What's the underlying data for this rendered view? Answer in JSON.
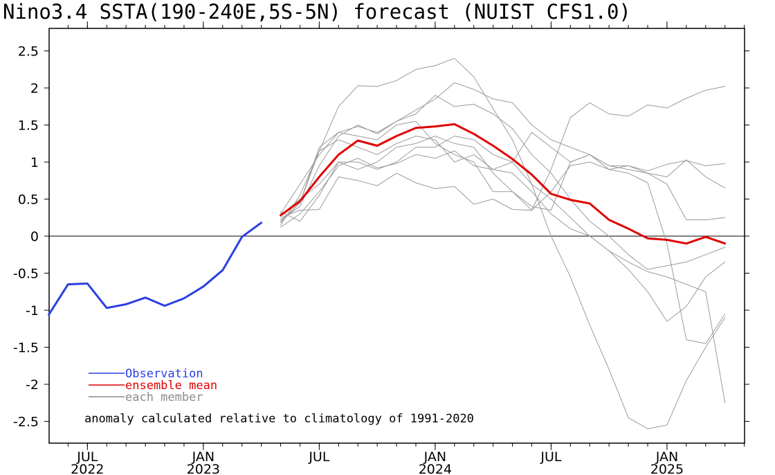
{
  "chart_data": {
    "type": "line",
    "title": "Nino3.4 SSTA(190-240E,5S-5N) forecast (NUIST CFS1.0)",
    "annotation": "anomaly calculated relative to climatology of 1991-2020",
    "ylim": [
      -2.8,
      2.8
    ],
    "y_ticks": [
      "2.5",
      "2",
      "1.5",
      "1",
      "0.5",
      "0",
      "-0.5",
      "-1",
      "-1.5",
      "-2",
      "-2.5"
    ],
    "y_tick_values": [
      2.5,
      2,
      1.5,
      1,
      0.5,
      0,
      -0.5,
      -1,
      -1.5,
      -2,
      -2.5
    ],
    "x_tick_labels": [
      {
        "month": "JUL",
        "year": "2022",
        "x": "2022-07"
      },
      {
        "month": "JAN",
        "year": "2023",
        "x": "2023-01"
      },
      {
        "month": "JUL",
        "year": "",
        "x": "2023-07"
      },
      {
        "month": "JAN",
        "year": "2024",
        "x": "2024-01"
      },
      {
        "month": "JUL",
        "year": "",
        "x": "2024-07"
      },
      {
        "month": "JAN",
        "year": "2025",
        "x": "2025-01"
      }
    ],
    "x_range": [
      "2022-05",
      "2025-05"
    ],
    "zero_line": true,
    "grid": false,
    "legend_position": "bottom-left",
    "legend": [
      {
        "label": "Observation",
        "color": "#2b3fe0"
      },
      {
        "label": "ensemble mean",
        "color": "#e00000"
      },
      {
        "label": "each member",
        "color": "#8c8c8c"
      }
    ],
    "colors": {
      "observation": "#2b3fe0",
      "ensemble": "#e00000",
      "member": "#9a9a9a"
    },
    "series": [
      {
        "name": "Observation",
        "color": "#2b3fe0",
        "x": [
          "2022-05",
          "2022-06",
          "2022-07",
          "2022-08",
          "2022-09",
          "2022-10",
          "2022-11",
          "2022-12",
          "2023-01",
          "2023-02",
          "2023-03",
          "2023-04"
        ],
        "values": [
          -1.06,
          -0.65,
          -0.64,
          -0.97,
          -0.92,
          -0.83,
          -0.94,
          -0.84,
          -0.68,
          -0.46,
          -0.01,
          0.18
        ]
      },
      {
        "name": "ensemble mean",
        "color": "#e00000",
        "x": [
          "2023-05",
          "2023-06",
          "2023-07",
          "2023-08",
          "2023-09",
          "2023-10",
          "2023-11",
          "2023-12",
          "2024-01",
          "2024-02",
          "2024-03",
          "2024-04",
          "2024-05",
          "2024-06",
          "2024-07",
          "2024-08",
          "2024-09",
          "2024-10",
          "2024-11",
          "2024-12",
          "2025-01",
          "2025-02",
          "2025-03",
          "2025-04"
        ],
        "values": [
          0.28,
          0.47,
          0.8,
          1.1,
          1.29,
          1.22,
          1.35,
          1.46,
          1.48,
          1.51,
          1.38,
          1.22,
          1.04,
          0.83,
          0.57,
          0.49,
          0.44,
          0.22,
          0.1,
          -0.03,
          -0.05,
          -0.1,
          -0.01,
          -0.1
        ]
      },
      {
        "name": "each member",
        "color": "#9a9a9a",
        "x_start": "2023-05",
        "values": [
          0.12,
          0.3,
          0.6,
          0.95,
          1.05,
          0.92,
          0.98,
          1.1,
          1.05,
          1.15,
          0.95,
          0.9,
          0.85,
          0.6,
          0.3,
          0.1,
          0.0,
          -0.2,
          -0.35,
          -0.48,
          -0.55,
          -0.65,
          -0.75,
          -2.25
        ]
      },
      {
        "name": "each member",
        "color": "#9a9a9a",
        "x_start": "2023-05",
        "values": [
          0.15,
          0.55,
          1.15,
          1.75,
          2.03,
          2.02,
          2.1,
          2.25,
          2.3,
          2.4,
          2.15,
          1.72,
          1.3,
          0.7,
          0.0,
          -0.55,
          -1.2,
          -1.8,
          -2.45,
          -2.6,
          -2.55,
          -1.95,
          -1.5,
          -1.1
        ]
      },
      {
        "name": "each member",
        "color": "#9a9a9a",
        "x_start": "2023-05",
        "values": [
          0.22,
          0.4,
          0.95,
          1.35,
          1.5,
          1.38,
          1.55,
          1.7,
          1.85,
          2.07,
          1.98,
          1.85,
          1.8,
          1.5,
          1.3,
          1.2,
          1.1,
          0.9,
          0.85,
          0.72,
          -0.1,
          -1.4,
          -1.45,
          -1.05
        ]
      },
      {
        "name": "each member",
        "color": "#9a9a9a",
        "x_start": "2023-05",
        "values": [
          0.33,
          0.2,
          0.55,
          1.0,
          1.0,
          0.9,
          1.0,
          1.2,
          1.2,
          1.35,
          1.3,
          1.1,
          1.0,
          0.7,
          0.5,
          0.25,
          0.0,
          -0.2,
          -0.45,
          -0.75,
          -1.15,
          -0.95,
          -0.55,
          -0.35
        ]
      },
      {
        "name": "each member",
        "color": "#9a9a9a",
        "x_start": "2023-05",
        "values": [
          0.2,
          0.45,
          1.2,
          1.4,
          1.48,
          1.4,
          1.55,
          1.65,
          1.9,
          1.75,
          1.78,
          1.65,
          1.45,
          1.1,
          0.85,
          0.5,
          0.2,
          0.0,
          -0.25,
          -0.45,
          -0.4,
          -0.35,
          -0.25,
          -0.15
        ]
      },
      {
        "name": "each member",
        "color": "#9a9a9a",
        "x_start": "2023-05",
        "values": [
          0.25,
          0.35,
          0.36,
          0.8,
          0.75,
          0.68,
          0.85,
          0.72,
          0.64,
          0.67,
          0.43,
          0.5,
          0.36,
          0.35,
          0.9,
          1.6,
          1.8,
          1.65,
          1.62,
          1.77,
          1.73,
          1.86,
          1.97,
          2.02
        ]
      },
      {
        "name": "each member",
        "color": "#9a9a9a",
        "x_start": "2023-05",
        "values": [
          0.3,
          0.7,
          1.1,
          1.4,
          1.35,
          1.3,
          1.5,
          1.55,
          1.25,
          1.1,
          1.0,
          0.6,
          0.6,
          0.35,
          0.6,
          0.95,
          1.0,
          0.9,
          0.95,
          0.88,
          0.97,
          1.02,
          0.95,
          0.98
        ]
      },
      {
        "name": "each member",
        "color": "#9a9a9a",
        "x_start": "2023-05",
        "values": [
          0.18,
          0.45,
          1.15,
          1.3,
          1.2,
          1.1,
          1.25,
          1.35,
          1.3,
          1.0,
          1.1,
          0.9,
          1.0,
          1.4,
          1.2,
          1.0,
          1.1,
          0.95,
          0.9,
          0.85,
          0.7,
          0.22,
          0.22,
          0.25
        ]
      },
      {
        "name": "each member",
        "color": "#9a9a9a",
        "x_start": "2023-05",
        "values": [
          0.28,
          0.5,
          0.7,
          1.0,
          0.9,
          1.0,
          1.2,
          1.25,
          1.35,
          1.25,
          1.2,
          0.85,
          0.6,
          0.4,
          0.35,
          1.0,
          1.1,
          0.95,
          0.95,
          0.85,
          0.8,
          1.03,
          0.8,
          0.65
        ]
      }
    ]
  }
}
